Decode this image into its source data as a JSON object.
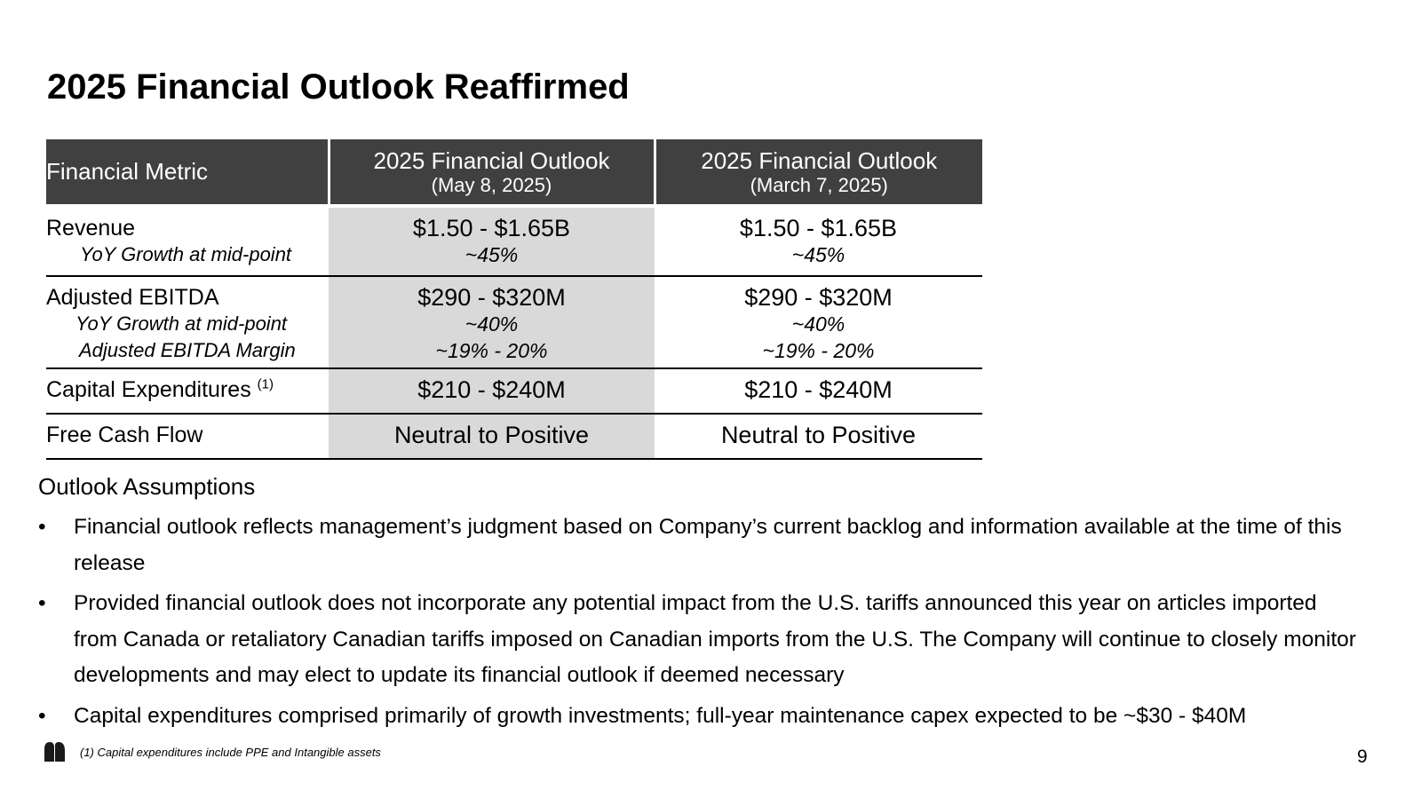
{
  "slide": {
    "title": "2025 Financial Outlook Reaffirmed",
    "page_number": "9"
  },
  "table": {
    "headers": [
      {
        "main": "Financial Metric",
        "sub": ""
      },
      {
        "main": "2025 Financial Outlook",
        "sub": "(May 8, 2025)"
      },
      {
        "main": "2025 Financial Outlook",
        "sub": "(March 7, 2025)"
      }
    ],
    "rows": {
      "revenue": {
        "label": "Revenue",
        "sub_labels": [
          "YoY Growth at mid-point"
        ],
        "may": {
          "main": "$1.50 - $1.65B",
          "sub": [
            "~45%"
          ]
        },
        "march": {
          "main": "$1.50 - $1.65B",
          "sub": [
            "~45%"
          ]
        }
      },
      "ebitda": {
        "label": "Adjusted EBITDA",
        "sub_labels": [
          "YoY Growth at mid-point",
          "Adjusted EBITDA Margin"
        ],
        "may": {
          "main": "$290 - $320M",
          "sub": [
            "~40%",
            "~19% - 20%"
          ]
        },
        "march": {
          "main": "$290 - $320M",
          "sub": [
            "~40%",
            "~19% - 20%"
          ]
        }
      },
      "capex": {
        "label": "Capital Expenditures",
        "footnote_ref": "(1)",
        "may": {
          "main": "$210 - $240M"
        },
        "march": {
          "main": "$210 - $240M"
        }
      },
      "fcf": {
        "label": "Free Cash Flow",
        "may": {
          "main": "Neutral to Positive"
        },
        "march": {
          "main": "Neutral to Positive"
        }
      }
    }
  },
  "assumptions": {
    "title": "Outlook Assumptions",
    "bullet_char": "•",
    "items": [
      "Financial outlook reflects management’s judgment based on Company’s current backlog and information available at the time of this release",
      "Provided financial outlook does not incorporate any potential impact from the U.S. tariffs announced this year on articles imported from Canada or retaliatory Canadian tariffs imposed on Canadian imports from the U.S. The Company will continue to closely monitor developments and may elect to update its financial outlook if deemed necessary",
      "Capital expenditures comprised primarily of growth investments; full-year maintenance capex expected to be ~$30 - $40M"
    ]
  },
  "footnote": "(1) Capital expenditures include PPE and Intangible assets",
  "logo": {
    "icon": "company-logo-icon",
    "color": "#1a1a1a"
  },
  "colors": {
    "header_bg": "#404040",
    "shaded_col": "#d9d9d9"
  }
}
